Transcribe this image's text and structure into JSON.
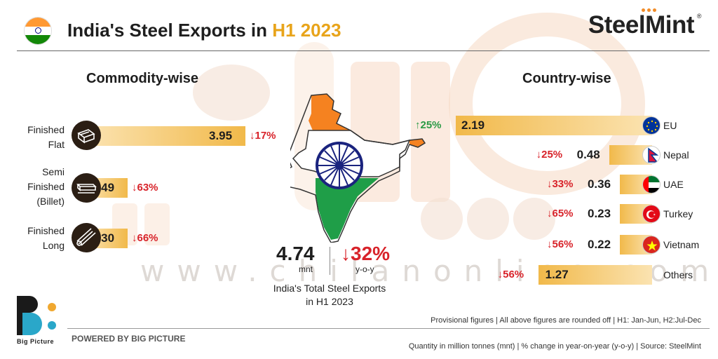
{
  "header": {
    "title_main": "India's Steel Exports in ",
    "title_accent": "H1 2023",
    "logo": "SteelMint",
    "logo_reg": "®"
  },
  "watermark": "www.chilanonline.com",
  "sections": {
    "commodity": "Commodity-wise",
    "country": "Country-wise"
  },
  "chart_data": [
    {
      "type": "bar",
      "title": "Commodity-wise",
      "categories": [
        "Finished Flat",
        "Semi Finished (Billet)",
        "Finished Long"
      ],
      "values": [
        3.95,
        0.49,
        0.3
      ],
      "change_yoy": [
        "17%",
        "63%",
        "66%"
      ],
      "change_dir": [
        "down",
        "down",
        "down"
      ]
    },
    {
      "type": "bar",
      "title": "Country-wise",
      "categories": [
        "EU",
        "Nepal",
        "UAE",
        "Turkey",
        "Vietnam",
        "Others"
      ],
      "values": [
        2.19,
        0.48,
        0.36,
        0.23,
        0.22,
        1.27
      ],
      "change_yoy": [
        "25%",
        "25%",
        "33%",
        "65%",
        "56%",
        "56%"
      ],
      "change_dir": [
        "up",
        "down",
        "down",
        "down",
        "down",
        "down"
      ]
    }
  ],
  "commodity_labels": [
    {
      "line1": "Finished",
      "line2": "Flat",
      "line3": ""
    },
    {
      "line1": "Semi",
      "line2": "Finished",
      "line3": "(Billet)"
    },
    {
      "line1": "Finished",
      "line2": "Long",
      "line3": ""
    }
  ],
  "total": {
    "value": "4.74",
    "unit": "mnt",
    "change": "32%",
    "change_unit": "y-o-y",
    "caption_line1": "India's Total Steel Exports",
    "caption_line2": "in H1 2023"
  },
  "footer": {
    "brand": "Big Picture",
    "powered": "POWERED BY BIG PICTURE",
    "note1": "Provisional figures | All above figures are rounded off | H1: Jan-Jun, H2:Jul-Dec",
    "note2": "Quantity in million tonnes (mnt) | % change in year-on-year (y-o-y) | Source: SteelMint"
  },
  "colors": {
    "bar_light": "#fbe3b1",
    "bar_dark": "#f1b94a",
    "down": "#d8232a",
    "up": "#2a9a45",
    "saffron": "#ff9933",
    "india_green": "#138808",
    "accent": "#e8a41b"
  }
}
